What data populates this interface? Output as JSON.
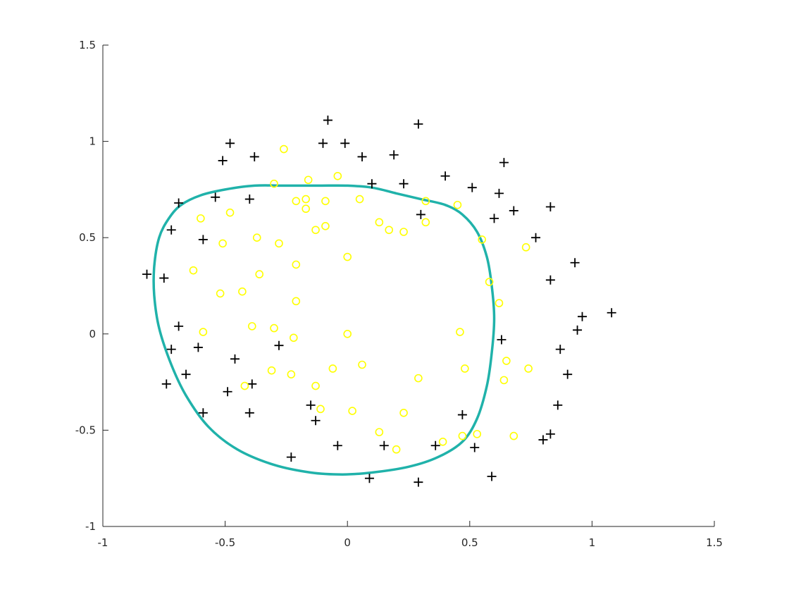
{
  "chart_data": {
    "type": "scatter",
    "xlim": [
      -1,
      1.5
    ],
    "ylim": [
      -1,
      1.5
    ],
    "x_ticks": [
      -1,
      -0.5,
      0,
      0.5,
      1,
      1.5
    ],
    "y_ticks": [
      -1,
      -0.5,
      0,
      0.5,
      1,
      1.5
    ],
    "x_tick_labels": [
      "-1",
      "-0.5",
      "0",
      "0.5",
      "1",
      "1.5"
    ],
    "y_tick_labels": [
      "-1",
      "-0.5",
      "0",
      "0.5",
      "1",
      "1.5"
    ],
    "grid": false,
    "colors": {
      "positive": "#000000",
      "negative": "#ffff00",
      "boundary": "#20b2aa",
      "axis": "#262626"
    },
    "series": [
      {
        "marker": "plus",
        "points": [
          [
            -0.82,
            0.31
          ],
          [
            -0.75,
            0.29
          ],
          [
            -0.72,
            0.54
          ],
          [
            -0.69,
            0.68
          ],
          [
            -0.69,
            0.04
          ],
          [
            -0.72,
            -0.08
          ],
          [
            -0.74,
            -0.26
          ],
          [
            -0.66,
            -0.21
          ],
          [
            -0.61,
            -0.07
          ],
          [
            -0.59,
            0.49
          ],
          [
            -0.59,
            -0.41
          ],
          [
            -0.54,
            0.71
          ],
          [
            -0.51,
            0.9
          ],
          [
            -0.48,
            0.99
          ],
          [
            -0.49,
            -0.3
          ],
          [
            -0.46,
            -0.13
          ],
          [
            -0.4,
            0.7
          ],
          [
            -0.38,
            0.92
          ],
          [
            -0.4,
            -0.41
          ],
          [
            -0.39,
            -0.26
          ],
          [
            -0.28,
            -0.06
          ],
          [
            -0.23,
            -0.64
          ],
          [
            -0.15,
            -0.37
          ],
          [
            -0.13,
            -0.45
          ],
          [
            -0.1,
            0.99
          ],
          [
            -0.08,
            1.11
          ],
          [
            -0.01,
            0.99
          ],
          [
            -0.04,
            -0.58
          ],
          [
            0.06,
            0.92
          ],
          [
            0.1,
            0.78
          ],
          [
            0.09,
            -0.75
          ],
          [
            0.15,
            -0.58
          ],
          [
            0.19,
            0.93
          ],
          [
            0.23,
            0.78
          ],
          [
            0.29,
            1.09
          ],
          [
            0.3,
            0.62
          ],
          [
            0.29,
            -0.77
          ],
          [
            0.36,
            -0.58
          ],
          [
            0.4,
            0.82
          ],
          [
            0.47,
            -0.42
          ],
          [
            0.51,
            0.76
          ],
          [
            0.52,
            -0.59
          ],
          [
            0.6,
            0.6
          ],
          [
            0.62,
            0.73
          ],
          [
            0.64,
            0.89
          ],
          [
            0.63,
            -0.03
          ],
          [
            0.59,
            -0.74
          ],
          [
            0.68,
            0.64
          ],
          [
            0.77,
            0.5
          ],
          [
            0.8,
            -0.55
          ],
          [
            0.83,
            -0.52
          ],
          [
            0.83,
            0.66
          ],
          [
            0.83,
            0.28
          ],
          [
            0.86,
            -0.37
          ],
          [
            0.87,
            -0.08
          ],
          [
            0.9,
            -0.21
          ],
          [
            0.93,
            0.37
          ],
          [
            0.94,
            0.02
          ],
          [
            0.96,
            0.09
          ],
          [
            1.08,
            0.11
          ]
        ]
      },
      {
        "marker": "circle",
        "points": [
          [
            -0.63,
            0.33
          ],
          [
            -0.6,
            0.6
          ],
          [
            -0.59,
            0.01
          ],
          [
            -0.52,
            0.21
          ],
          [
            -0.51,
            0.47
          ],
          [
            -0.48,
            0.63
          ],
          [
            -0.43,
            0.22
          ],
          [
            -0.42,
            -0.27
          ],
          [
            -0.39,
            0.04
          ],
          [
            -0.37,
            0.5
          ],
          [
            -0.36,
            0.31
          ],
          [
            -0.3,
            0.78
          ],
          [
            -0.3,
            0.03
          ],
          [
            -0.31,
            -0.19
          ],
          [
            -0.28,
            0.47
          ],
          [
            -0.26,
            0.96
          ],
          [
            -0.23,
            -0.21
          ],
          [
            -0.21,
            0.69
          ],
          [
            -0.21,
            0.36
          ],
          [
            -0.21,
            0.17
          ],
          [
            -0.22,
            -0.02
          ],
          [
            -0.17,
            0.7
          ],
          [
            -0.17,
            0.65
          ],
          [
            -0.16,
            0.8
          ],
          [
            -0.13,
            0.54
          ],
          [
            -0.13,
            -0.27
          ],
          [
            -0.11,
            -0.39
          ],
          [
            -0.09,
            0.69
          ],
          [
            -0.09,
            0.56
          ],
          [
            -0.04,
            0.82
          ],
          [
            -0.06,
            -0.18
          ],
          [
            0.0,
            0.4
          ],
          [
            0.0,
            0.0
          ],
          [
            0.02,
            -0.4
          ],
          [
            0.05,
            0.7
          ],
          [
            0.06,
            -0.16
          ],
          [
            0.13,
            0.58
          ],
          [
            0.13,
            -0.51
          ],
          [
            0.17,
            0.54
          ],
          [
            0.2,
            -0.6
          ],
          [
            0.23,
            0.53
          ],
          [
            0.23,
            -0.41
          ],
          [
            0.29,
            -0.23
          ],
          [
            0.32,
            0.69
          ],
          [
            0.32,
            0.58
          ],
          [
            0.39,
            -0.56
          ],
          [
            0.45,
            0.67
          ],
          [
            0.46,
            0.01
          ],
          [
            0.47,
            -0.53
          ],
          [
            0.48,
            -0.18
          ],
          [
            0.53,
            -0.52
          ],
          [
            0.55,
            0.49
          ],
          [
            0.58,
            0.27
          ],
          [
            0.62,
            0.16
          ],
          [
            0.64,
            -0.24
          ],
          [
            0.65,
            -0.14
          ],
          [
            0.68,
            -0.53
          ],
          [
            0.73,
            0.45
          ],
          [
            0.74,
            -0.18
          ]
        ]
      }
    ],
    "decision_boundary": [
      [
        0.0,
        0.77
      ],
      [
        0.1,
        0.76
      ],
      [
        0.2,
        0.73
      ],
      [
        0.3,
        0.7
      ],
      [
        0.4,
        0.67
      ],
      [
        0.47,
        0.62
      ],
      [
        0.53,
        0.53
      ],
      [
        0.57,
        0.4
      ],
      [
        0.59,
        0.25
      ],
      [
        0.6,
        0.08
      ],
      [
        0.59,
        -0.1
      ],
      [
        0.57,
        -0.27
      ],
      [
        0.53,
        -0.44
      ],
      [
        0.47,
        -0.56
      ],
      [
        0.37,
        -0.64
      ],
      [
        0.25,
        -0.69
      ],
      [
        0.1,
        -0.72
      ],
      [
        -0.02,
        -0.73
      ],
      [
        -0.15,
        -0.72
      ],
      [
        -0.3,
        -0.68
      ],
      [
        -0.45,
        -0.6
      ],
      [
        -0.57,
        -0.48
      ],
      [
        -0.66,
        -0.32
      ],
      [
        -0.72,
        -0.16
      ],
      [
        -0.77,
        0.03
      ],
      [
        -0.79,
        0.2
      ],
      [
        -0.79,
        0.35
      ],
      [
        -0.77,
        0.5
      ],
      [
        -0.73,
        0.6
      ],
      [
        -0.68,
        0.67
      ],
      [
        -0.6,
        0.72
      ],
      [
        -0.5,
        0.75
      ],
      [
        -0.38,
        0.77
      ],
      [
        -0.25,
        0.77
      ],
      [
        -0.12,
        0.77
      ],
      [
        0.0,
        0.77
      ]
    ]
  }
}
